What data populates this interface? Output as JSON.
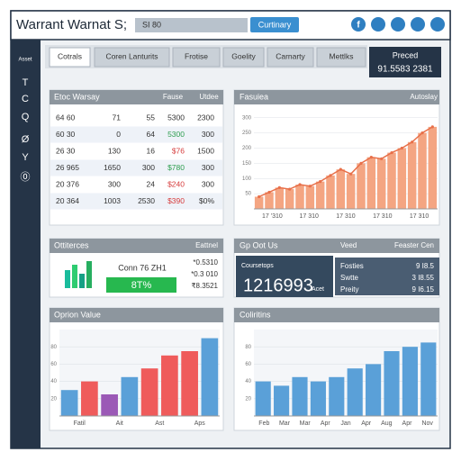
{
  "header": {
    "title": "Warrant Warnat S;",
    "search": "SI 80",
    "button": "Curtinary",
    "social": "f"
  },
  "sidebar": [
    "Asset",
    "T",
    "C",
    "Q",
    "Ø",
    "Y",
    "⓪"
  ],
  "tabs": [
    "Cotrals",
    "Coren Lanturits",
    "Frotise",
    "Goelity",
    "Carnarty",
    "Mettlks"
  ],
  "price": {
    "label": "Preced",
    "value": "91.5583 2381"
  },
  "table": {
    "title": "Etoc Warsay",
    "columns": [
      "Fause",
      "Utdee"
    ],
    "rows": [
      [
        "64 60",
        "71",
        "55",
        "5300",
        "2300"
      ],
      [
        "60 30",
        "0",
        "64",
        "5300",
        "300"
      ],
      [
        "26 30",
        "130",
        "16",
        "$76",
        "1500"
      ],
      [
        "26 965",
        "1650",
        "300",
        "$780",
        "300"
      ],
      [
        "20 376",
        "300",
        "24",
        "$240",
        "300"
      ],
      [
        "20 364",
        "1003",
        "2530",
        "$390",
        "$0%"
      ]
    ],
    "highlight_colors": [
      "#333333",
      "#2e9e4f",
      "#d63c3c",
      "#2e9e4f",
      "#d63c3c",
      "#d63c3c"
    ]
  },
  "trend_chart": {
    "title": "Fasuiea",
    "subtitle": "Autoslay",
    "color": "#f4a582",
    "line_color": "#e8704a",
    "values": [
      40,
      55,
      70,
      65,
      80,
      75,
      90,
      110,
      130,
      115,
      150,
      170,
      165,
      185,
      200,
      220,
      250,
      270
    ],
    "ylim": [
      0,
      320
    ],
    "yticks": [
      50,
      100,
      150,
      200,
      250,
      300
    ],
    "x_labels": [
      "17 '310",
      "17 310",
      "17 310",
      "17 310",
      "17 310"
    ]
  },
  "summary": {
    "title": "Ottiterces",
    "subtitle": "Eattnel",
    "caption": "Conn 76 ZH1",
    "percent": "8T%",
    "stats": [
      "*0.5310",
      "*0.3 010",
      "₹8.3521"
    ]
  },
  "overview": {
    "title": "Gp Oot Us",
    "col1": "Veed",
    "col2": "Feaster Cen",
    "box_label": "Coursetops",
    "box_value": "1216993",
    "box_unit": "Acet",
    "rows": [
      [
        "Fosties",
        "9 I8.5"
      ],
      [
        "Swtte",
        "3 I8.55"
      ],
      [
        "Preity",
        "9 I6.15"
      ]
    ]
  },
  "option_chart": {
    "title": "Oprion Value",
    "values": [
      30,
      40,
      25,
      45,
      55,
      70,
      75,
      90
    ],
    "colors": [
      "#5aa0d8",
      "#ef5b5b",
      "#9b59b6",
      "#5aa0d8",
      "#ef5b5b",
      "#ef5b5b",
      "#ef5b5b",
      "#5aa0d8"
    ],
    "ylim": [
      0,
      100
    ],
    "yticks": [
      20,
      40,
      60,
      80
    ],
    "x_labels": [
      "Fatil",
      "Ait",
      "Ast",
      "Aps"
    ]
  },
  "column_chart": {
    "title": "Coliritins",
    "color": "#5aa0d8",
    "values": [
      40,
      35,
      45,
      40,
      45,
      55,
      60,
      75,
      80,
      85
    ],
    "ylim": [
      0,
      100
    ],
    "yticks": [
      20,
      40,
      60,
      80
    ],
    "x_labels": [
      "Feb",
      "Mar",
      "Mar",
      "Apr",
      "Jan",
      "Apr",
      "Aug",
      "Apr",
      "Nov"
    ]
  }
}
